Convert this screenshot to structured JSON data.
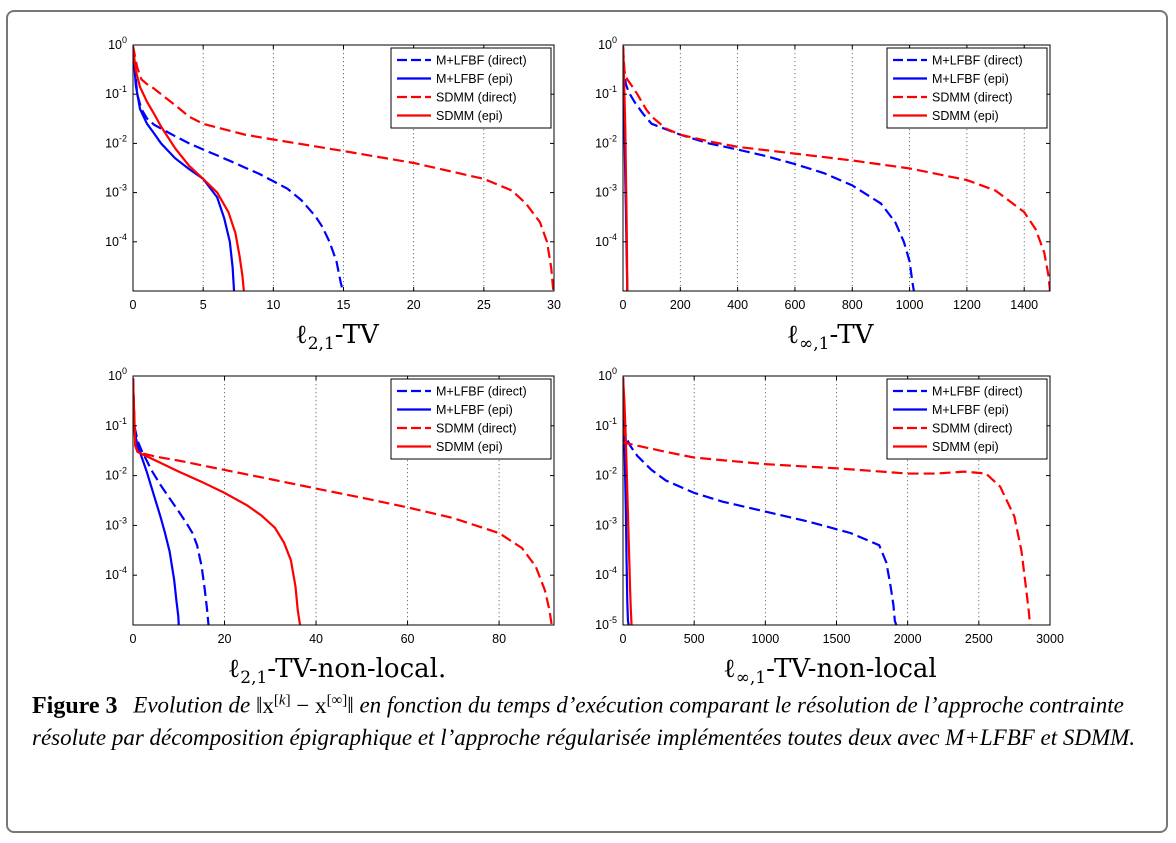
{
  "caption": {
    "label": "Figure 3",
    "text_before": "Evolution de ",
    "norm_expr": "‖x[k] − x[∞]‖",
    "text_after": " en fonction du temps d’exécution comparant le résolution de l’approche contrainte résolute par décomposition épigraphique et l’approche régularisée implémentées toutes deux avec M+LFBF et SDMM."
  },
  "colors": {
    "blue": "#0000ff",
    "red": "#ff0000",
    "grid": "#555555",
    "axis": "#000000"
  },
  "chart_data": [
    {
      "type": "line",
      "title": "ℓ2,1-TV",
      "title_main": "ℓ",
      "title_sub": "2,1",
      "title_rest": "-TV",
      "xlabel": "",
      "ylabel": "",
      "x_scale": "linear",
      "y_scale": "log",
      "xlim": [
        0,
        30
      ],
      "ylim_exp": [
        -5,
        0
      ],
      "xticks": [
        0,
        5,
        10,
        15,
        20,
        25,
        30
      ],
      "xtick_labels": [
        "0",
        "5",
        "10",
        "15",
        "20",
        "25",
        "30"
      ],
      "yticks_exp": [
        0,
        -1,
        -2,
        -3,
        -4
      ],
      "grid": "vertical dotted",
      "legend_position": "top-right",
      "series": [
        {
          "name": "M+LFBF (direct)",
          "color": "#0000ff",
          "dash": "dashed",
          "x": [
            0,
            0.3,
            0.6,
            1,
            1.5,
            2,
            3,
            4,
            5,
            6,
            7,
            8,
            9,
            10,
            11,
            12,
            13,
            13.5,
            14,
            14.5,
            14.8,
            14.95
          ],
          "y": [
            0.9,
            0.1,
            0.05,
            0.032,
            0.024,
            0.02,
            0.014,
            0.01,
            0.0075,
            0.0057,
            0.0043,
            0.0032,
            0.0024,
            0.0017,
            0.0012,
            0.0007,
            0.00033,
            0.0002,
            0.0001,
            4e-05,
            1.5e-05,
            1e-05
          ]
        },
        {
          "name": "M+LFBF (epi)",
          "color": "#0000ff",
          "dash": "solid",
          "x": [
            0,
            0.2,
            0.5,
            1,
            1.5,
            2,
            3,
            4,
            5,
            6,
            6.5,
            6.9,
            7.1,
            7.2
          ],
          "y": [
            0.9,
            0.15,
            0.05,
            0.025,
            0.016,
            0.01,
            0.005,
            0.003,
            0.0019,
            0.0008,
            0.0003,
            0.0001,
            3e-05,
            1e-05
          ]
        },
        {
          "name": "SDMM (direct)",
          "color": "#ff0000",
          "dash": "dashed",
          "x": [
            0,
            0.3,
            0.6,
            1,
            1.5,
            2,
            3,
            4,
            5,
            8,
            10,
            15,
            20,
            25,
            27,
            28,
            29,
            29.5,
            29.8,
            29.95
          ],
          "y": [
            0.95,
            0.35,
            0.2,
            0.16,
            0.13,
            0.1,
            0.06,
            0.035,
            0.025,
            0.015,
            0.012,
            0.007,
            0.004,
            0.0019,
            0.0011,
            0.0006,
            0.00025,
            0.0001,
            3e-05,
            1e-05
          ]
        },
        {
          "name": "SDMM (epi)",
          "color": "#ff0000",
          "dash": "solid",
          "x": [
            0,
            0.2,
            0.5,
            1,
            1.5,
            2,
            3,
            4,
            5,
            6,
            6.8,
            7.3,
            7.6,
            7.8,
            7.9
          ],
          "y": [
            0.9,
            0.3,
            0.14,
            0.07,
            0.04,
            0.022,
            0.008,
            0.0035,
            0.0019,
            0.001,
            0.0004,
            0.00015,
            5e-05,
            2e-05,
            1e-05
          ]
        }
      ]
    },
    {
      "type": "line",
      "title": "ℓ∞,1-TV",
      "title_main": "ℓ",
      "title_sub": "∞,1",
      "title_rest": "-TV",
      "xlabel": "",
      "ylabel": "",
      "x_scale": "linear",
      "y_scale": "log",
      "xlim": [
        0,
        1490
      ],
      "ylim_exp": [
        -5,
        0
      ],
      "xticks": [
        0,
        200,
        400,
        600,
        800,
        1000,
        1200,
        1400
      ],
      "xtick_labels": [
        "0",
        "200",
        "400",
        "600",
        "800",
        "1000",
        "1200",
        "1400"
      ],
      "yticks_exp": [
        0,
        -1,
        -2,
        -3,
        -4
      ],
      "grid": "vertical dotted",
      "legend_position": "top-right",
      "series": [
        {
          "name": "M+LFBF (direct)",
          "color": "#0000ff",
          "dash": "dashed",
          "x": [
            0,
            5,
            10,
            20,
            40,
            70,
            100,
            200,
            300,
            400,
            500,
            600,
            700,
            800,
            900,
            950,
            980,
            1000,
            1010,
            1015
          ],
          "y": [
            0.9,
            0.25,
            0.16,
            0.11,
            0.07,
            0.04,
            0.025,
            0.015,
            0.01,
            0.0075,
            0.0055,
            0.0038,
            0.0025,
            0.0014,
            0.0006,
            0.00025,
            0.0001,
            4e-05,
            1.5e-05,
            1e-05
          ]
        },
        {
          "name": "M+LFBF (epi)",
          "color": "#0000ff",
          "dash": "solid",
          "x": [
            0,
            2,
            4,
            6,
            8,
            10,
            12,
            14,
            15
          ],
          "y": [
            0.9,
            0.3,
            0.05,
            0.01,
            0.002,
            0.0005,
            0.0001,
            2e-05,
            1e-05
          ]
        },
        {
          "name": "SDMM (direct)",
          "color": "#ff0000",
          "dash": "dashed",
          "x": [
            0,
            5,
            15,
            30,
            50,
            80,
            100,
            150,
            200,
            300,
            400,
            600,
            800,
            1000,
            1200,
            1300,
            1400,
            1440,
            1470,
            1485,
            1490
          ],
          "y": [
            0.95,
            0.3,
            0.2,
            0.15,
            0.1,
            0.05,
            0.035,
            0.02,
            0.015,
            0.011,
            0.0085,
            0.0062,
            0.0045,
            0.0031,
            0.0018,
            0.0011,
            0.0004,
            0.00018,
            6e-05,
            2e-05,
            1e-05
          ]
        },
        {
          "name": "SDMM (epi)",
          "color": "#ff0000",
          "dash": "solid",
          "x": [
            0,
            2,
            5,
            8,
            10,
            12,
            14,
            15
          ],
          "y": [
            0.95,
            0.5,
            0.1,
            0.02,
            0.003,
            0.0005,
            5e-05,
            1e-05
          ]
        }
      ]
    },
    {
      "type": "line",
      "title": "ℓ2,1-TV-non-local.",
      "title_main": "ℓ",
      "title_sub": "2,1",
      "title_rest": "-TV-non-local.",
      "xlabel": "",
      "ylabel": "",
      "x_scale": "linear",
      "y_scale": "log",
      "xlim": [
        0,
        92
      ],
      "ylim_exp": [
        -5,
        0
      ],
      "xticks": [
        0,
        20,
        40,
        60,
        80
      ],
      "xtick_labels": [
        "0",
        "20",
        "40",
        "60",
        "80"
      ],
      "yticks_exp": [
        0,
        -1,
        -2,
        -3,
        -4
      ],
      "grid": "vertical dotted",
      "legend_position": "top-right",
      "series": [
        {
          "name": "M+LFBF (direct)",
          "color": "#0000ff",
          "dash": "dashed",
          "x": [
            0,
            0.3,
            1,
            2,
            3,
            4,
            6,
            8,
            10,
            12,
            13,
            14,
            15,
            15.7,
            16.2,
            16.5
          ],
          "y": [
            0.9,
            0.1,
            0.05,
            0.03,
            0.02,
            0.013,
            0.0065,
            0.0035,
            0.0019,
            0.001,
            0.0007,
            0.0004,
            0.00015,
            5e-05,
            2e-05,
            1e-05
          ]
        },
        {
          "name": "M+LFBF (epi)",
          "color": "#0000ff",
          "dash": "solid",
          "x": [
            0,
            0.3,
            1,
            2,
            3,
            4,
            5,
            6,
            7,
            8,
            9,
            9.5,
            9.9,
            10
          ],
          "y": [
            0.9,
            0.08,
            0.04,
            0.022,
            0.012,
            0.006,
            0.003,
            0.0015,
            0.0007,
            0.0003,
            8e-05,
            3e-05,
            1.5e-05,
            1e-05
          ]
        },
        {
          "name": "SDMM (direct)",
          "color": "#ff0000",
          "dash": "dashed",
          "x": [
            0,
            0.5,
            1,
            2,
            5,
            10,
            20,
            30,
            40,
            50,
            60,
            70,
            80,
            85,
            88,
            90,
            91,
            91.5
          ],
          "y": [
            0.9,
            0.04,
            0.03,
            0.028,
            0.024,
            0.02,
            0.013,
            0.0085,
            0.0055,
            0.0036,
            0.0023,
            0.0014,
            0.0007,
            0.00035,
            0.00015,
            5e-05,
            2e-05,
            1e-05
          ]
        },
        {
          "name": "SDMM (epi)",
          "color": "#ff0000",
          "dash": "solid",
          "x": [
            0,
            0.5,
            1,
            2,
            5,
            10,
            15,
            20,
            25,
            28,
            31,
            33,
            34.5,
            35.5,
            36,
            36.5
          ],
          "y": [
            0.9,
            0.04,
            0.03,
            0.027,
            0.02,
            0.012,
            0.0075,
            0.0045,
            0.0025,
            0.0016,
            0.0009,
            0.00045,
            0.0002,
            6e-05,
            2e-05,
            1e-05
          ]
        }
      ]
    },
    {
      "type": "line",
      "title": "ℓ∞,1-TV-non-local",
      "title_main": "ℓ",
      "title_sub": "∞,1",
      "title_rest": "-TV-non-local",
      "xlabel": "",
      "ylabel": "",
      "x_scale": "linear",
      "y_scale": "log",
      "xlim": [
        0,
        3000
      ],
      "ylim_exp": [
        -5,
        0
      ],
      "xticks": [
        0,
        500,
        1000,
        1500,
        2000,
        2500,
        3000
      ],
      "xtick_labels": [
        "0",
        "500",
        "1000",
        "1500",
        "2000",
        "2500",
        "3000"
      ],
      "yticks_exp": [
        0,
        -1,
        -2,
        -3,
        -4,
        -5
      ],
      "grid": "vertical dotted",
      "legend_position": "top-right",
      "series": [
        {
          "name": "M+LFBF (direct)",
          "color": "#0000ff",
          "dash": "dashed",
          "x": [
            0,
            5,
            20,
            50,
            100,
            200,
            300,
            500,
            700,
            1000,
            1300,
            1600,
            1800,
            1850,
            1880,
            1900,
            1910,
            1920
          ],
          "y": [
            0.95,
            0.1,
            0.06,
            0.04,
            0.025,
            0.013,
            0.008,
            0.0045,
            0.003,
            0.0019,
            0.0012,
            0.0007,
            0.0004,
            0.00018,
            6e-05,
            2.5e-05,
            1.2e-05,
            1e-05
          ]
        },
        {
          "name": "M+LFBF (epi)",
          "color": "#0000ff",
          "dash": "solid",
          "x": [
            0,
            10,
            20,
            25,
            30,
            35,
            40
          ],
          "y": [
            0.9,
            0.05,
            0.002,
            0.0002,
            3e-05,
            1.2e-05,
            1e-05
          ]
        },
        {
          "name": "SDMM (direct)",
          "color": "#ff0000",
          "dash": "dashed",
          "x": [
            0,
            5,
            20,
            100,
            300,
            500,
            1000,
            1500,
            2000,
            2200,
            2400,
            2550,
            2650,
            2750,
            2800,
            2830,
            2850,
            2860
          ],
          "y": [
            0.95,
            0.045,
            0.045,
            0.04,
            0.03,
            0.023,
            0.017,
            0.014,
            0.011,
            0.011,
            0.012,
            0.011,
            0.006,
            0.0015,
            0.0003,
            6e-05,
            2e-05,
            1e-05
          ]
        },
        {
          "name": "SDMM (epi)",
          "color": "#ff0000",
          "dash": "solid",
          "x": [
            0,
            10,
            20,
            30,
            40,
            50,
            55,
            60
          ],
          "y": [
            0.95,
            0.3,
            0.05,
            0.005,
            0.0005,
            5e-05,
            2e-05,
            1e-05
          ]
        }
      ]
    }
  ]
}
